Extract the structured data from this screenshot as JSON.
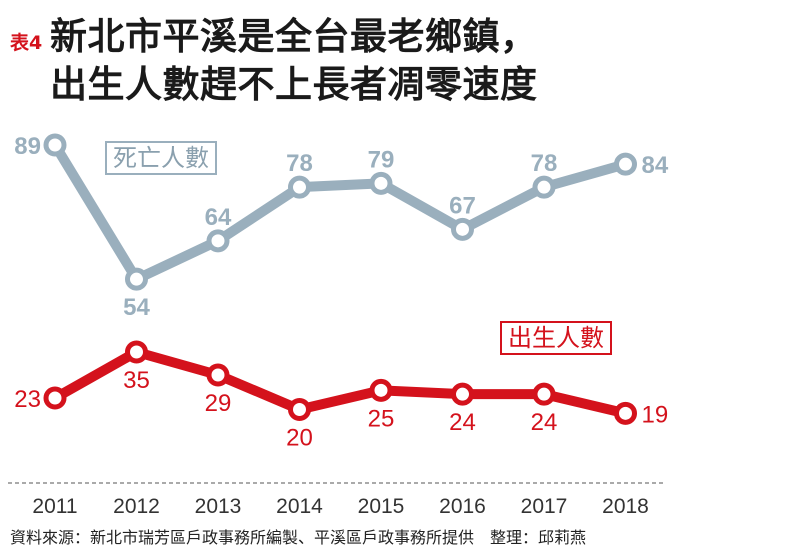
{
  "title": {
    "tag": "表4",
    "line1": "新北市平溪是全台最老鄉鎮，",
    "line2": "出生人數趕不上長者凋零速度"
  },
  "source": "資料來源：新北市瑞芳區戶政事務所編製、平溪區戶政事務所提供　整理：邱莉燕",
  "chart_data": {
    "type": "line",
    "categories": [
      "2011",
      "2012",
      "2013",
      "2014",
      "2015",
      "2016",
      "2017",
      "2018"
    ],
    "series": [
      {
        "name": "死亡人數",
        "values": [
          89,
          54,
          64,
          78,
          79,
          67,
          78,
          84
        ],
        "color": "#9aafbd"
      },
      {
        "name": "出生人數",
        "values": [
          23,
          35,
          29,
          20,
          25,
          24,
          24,
          19
        ],
        "color": "#d4121c"
      }
    ],
    "ylim": [
      15,
      92
    ],
    "grid": false,
    "legend": "inline labels"
  }
}
